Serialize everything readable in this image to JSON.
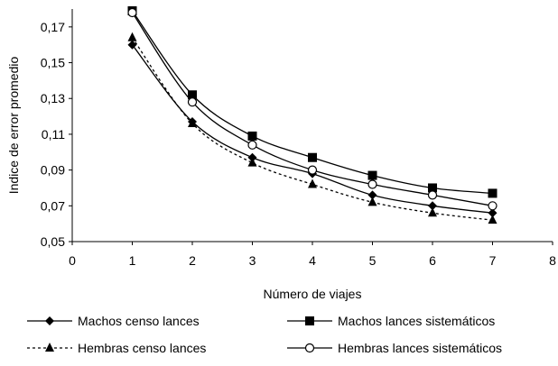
{
  "chart_data": {
    "type": "line",
    "xlabel": "Número de viajes",
    "ylabel": "Indice de error promedio",
    "xlim": [
      0,
      8
    ],
    "ylim": [
      0.05,
      0.18
    ],
    "x_ticks": [
      "0",
      "1",
      "2",
      "3",
      "4",
      "5",
      "6",
      "7",
      "8"
    ],
    "y_ticks": [
      "0,05",
      "0,07",
      "0,09",
      "0,11",
      "0,13",
      "0,15",
      "0,17"
    ],
    "grid": false,
    "legend_position": "bottom",
    "x": [
      1,
      2,
      3,
      4,
      5,
      6,
      7
    ],
    "series": [
      {
        "name": "Machos censo lances",
        "marker": "diamond",
        "line": "solid",
        "values": [
          0.16,
          0.117,
          0.097,
          0.088,
          0.076,
          0.07,
          0.066
        ]
      },
      {
        "name": "Machos lances sistemáticos",
        "marker": "square",
        "line": "solid",
        "values": [
          0.179,
          0.132,
          0.109,
          0.097,
          0.087,
          0.08,
          0.077
        ]
      },
      {
        "name": "Hembras censo lances",
        "marker": "triangle",
        "line": "dotted",
        "values": [
          0.164,
          0.116,
          0.094,
          0.082,
          0.072,
          0.066,
          0.062
        ]
      },
      {
        "name": "Hembras lances sistemáticos",
        "marker": "circle",
        "line": "solid",
        "values": [
          0.178,
          0.128,
          0.104,
          0.09,
          0.082,
          0.076,
          0.07
        ]
      }
    ]
  }
}
